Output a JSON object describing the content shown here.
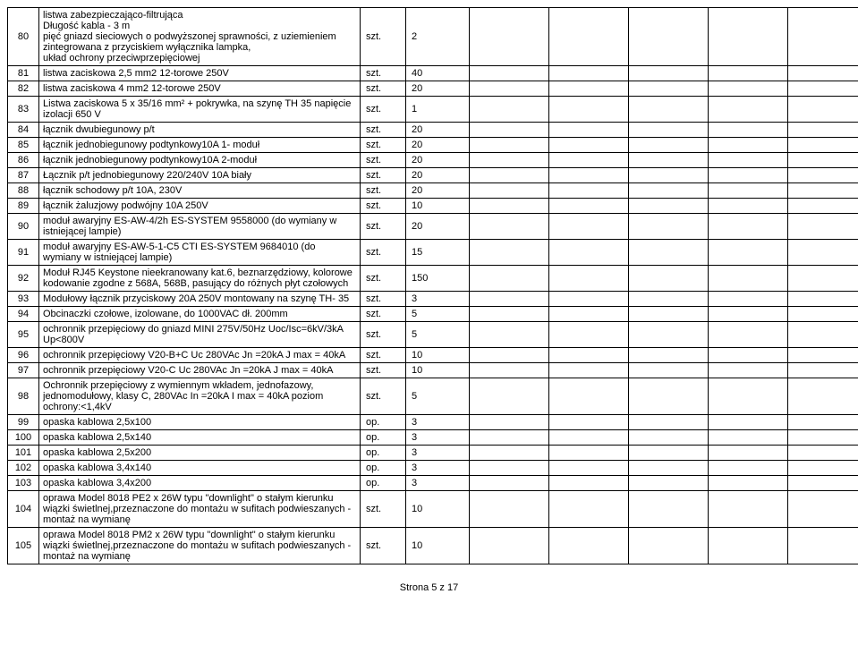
{
  "rows": [
    {
      "idx": "80",
      "desc": "listwa zabezpieczająco-filtrująca\nDługość kabla - 3 m\npięć gniazd sieciowych o podwyższonej sprawności, z uziemieniem\nzintegrowana z przyciskiem wyłącznika lampka,\nukład ochrony przeciwprzepięciowej",
      "unit": "szt.",
      "qty": "2"
    },
    {
      "idx": "81",
      "desc": "listwa zaciskowa 2,5 mm2 12-torowe 250V",
      "unit": "szt.",
      "qty": "40"
    },
    {
      "idx": "82",
      "desc": "listwa zaciskowa 4 mm2 12-torowe 250V",
      "unit": "szt.",
      "qty": "20"
    },
    {
      "idx": "83",
      "desc": "Listwa zaciskowa 5 x 35/16 mm² + pokrywka, na szynę TH 35 napięcie izolacji 650 V",
      "unit": "szt.",
      "qty": "1"
    },
    {
      "idx": "84",
      "desc": "łącznik dwubiegunowy p/t",
      "unit": "szt.",
      "qty": "20"
    },
    {
      "idx": "85",
      "desc": "łącznik jednobiegunowy podtynkowy10A 1- moduł",
      "unit": "szt.",
      "qty": "20"
    },
    {
      "idx": "86",
      "desc": "łącznik jednobiegunowy podtynkowy10A 2-moduł",
      "unit": "szt.",
      "qty": "20"
    },
    {
      "idx": "87",
      "desc": "Łącznik p/t jednobiegunowy 220/240V 10A biały",
      "unit": "szt.",
      "qty": "20"
    },
    {
      "idx": "88",
      "desc": "łącznik schodowy p/t 10A, 230V",
      "unit": "szt.",
      "qty": "20"
    },
    {
      "idx": "89",
      "desc": "łącznik żaluzjowy podwójny 10A 250V",
      "unit": "szt.",
      "qty": "10"
    },
    {
      "idx": "90",
      "desc": "moduł awaryjny ES-AW-4/2h ES-SYSTEM 9558000 (do wymiany w istniejącej lampie)",
      "unit": "szt.",
      "qty": "20"
    },
    {
      "idx": "91",
      "desc": "moduł awaryjny ES-AW-5-1-C5 CTI ES-SYSTEM 9684010 (do wymiany w istniejącej lampie)",
      "unit": "szt.",
      "qty": "15"
    },
    {
      "idx": "92",
      "desc": "Moduł RJ45 Keystone nieekranowany kat.6, beznarzędziowy, kolorowe kodowanie zgodne z 568A, 568B, pasujący do różnych płyt czołowych",
      "unit": "szt.",
      "qty": "150"
    },
    {
      "idx": "93",
      "desc": "Modułowy łącznik przyciskowy 20A 250V montowany na szynę TH- 35",
      "unit": "szt.",
      "qty": "3"
    },
    {
      "idx": "94",
      "desc": "Obcinaczki czołowe, izolowane, do 1000VAC dł. 200mm",
      "unit": "szt.",
      "qty": "5"
    },
    {
      "idx": "95",
      "desc": "ochronnik przepięciowy do gniazd MINI 275V/50Hz Uoc/Isc=6kV/3kA Up<800V",
      "unit": "szt.",
      "qty": "5"
    },
    {
      "idx": "96",
      "desc": "ochronnik przepięciowy V20-B+C Uc 280VAc Jn =20kA J max = 40kA",
      "unit": "szt.",
      "qty": "10"
    },
    {
      "idx": "97",
      "desc": "ochronnik przepięciowy V20-C Uc 280VAc Jn =20kA J max = 40kA",
      "unit": "szt.",
      "qty": "10"
    },
    {
      "idx": "98",
      "desc": "Ochronnik przepięciowy z wymiennym wkładem, jednofazowy, jednomodułowy, klasy C, 280VAc In =20kA I max = 40kA poziom ochrony:<1,4kV",
      "unit": "szt.",
      "qty": "5"
    },
    {
      "idx": "99",
      "desc": "opaska kablowa 2,5x100",
      "unit": "op.",
      "qty": "3"
    },
    {
      "idx": "100",
      "desc": "opaska kablowa 2,5x140",
      "unit": "op.",
      "qty": "3"
    },
    {
      "idx": "101",
      "desc": "opaska kablowa 2,5x200",
      "unit": "op.",
      "qty": "3"
    },
    {
      "idx": "102",
      "desc": "opaska kablowa 3,4x140",
      "unit": "op.",
      "qty": "3"
    },
    {
      "idx": "103",
      "desc": "opaska kablowa 3,4x200",
      "unit": "op.",
      "qty": "3"
    },
    {
      "idx": "104",
      "desc": "oprawa Model 8018 PE2 x 26W typu \"downlight\" o stałym kierunku wiązki świetlnej,przeznaczone do montażu w sufitach podwieszanych - montaż na wymianę",
      "unit": "szt.",
      "qty": "10"
    },
    {
      "idx": "105",
      "desc": "oprawa Model 8018 PM2 x 26W typu \"downlight\" o stałym kierunku wiązki świetlnej,przeznaczone do montażu w sufitach podwieszanych - montaż na wymianę",
      "unit": "szt.",
      "qty": "10"
    }
  ],
  "footer": "Strona 5 z 17",
  "emptyCols": 5
}
